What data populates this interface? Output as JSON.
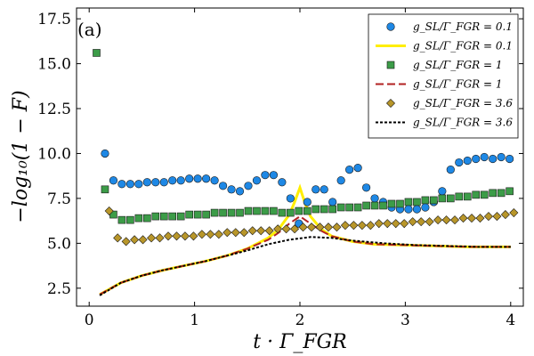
{
  "chart_data": {
    "type": "scatter",
    "panel_label": "(a)",
    "xlabel": "t · Γ_FGR",
    "ylabel": "−log₁₀(1 − F)",
    "xlim": [
      -0.12,
      4.12
    ],
    "ylim": [
      1.5,
      18.1
    ],
    "x_ticks": [
      0,
      1,
      2,
      3,
      4
    ],
    "y_ticks": [
      2.5,
      5.0,
      7.5,
      10.0,
      12.5,
      15.0,
      17.5
    ],
    "x_tick_labels": [
      "0",
      "1",
      "2",
      "3",
      "4"
    ],
    "y_tick_labels": [
      "2.5",
      "5.0",
      "7.5",
      "10.0",
      "12.5",
      "15.0",
      "17.5"
    ],
    "grid": false,
    "legend_position": "top-right",
    "series": [
      {
        "name": "g_SL/Γ_FGR = 0.1",
        "kind": "scatter",
        "marker": "circle",
        "color": "#1e88e5",
        "x": [
          0.15,
          0.23,
          0.31,
          0.39,
          0.47,
          0.55,
          0.63,
          0.71,
          0.79,
          0.87,
          0.95,
          1.03,
          1.11,
          1.19,
          1.27,
          1.35,
          1.43,
          1.51,
          1.59,
          1.67,
          1.75,
          1.83,
          1.91,
          1.99,
          2.07,
          2.15,
          2.23,
          2.31,
          2.39,
          2.47,
          2.55,
          2.63,
          2.71,
          2.79,
          2.87,
          2.95,
          3.03,
          3.11,
          3.19,
          3.27,
          3.35,
          3.43,
          3.51,
          3.59,
          3.67,
          3.75,
          3.83,
          3.91,
          3.99
        ],
        "y": [
          10.0,
          8.5,
          8.3,
          8.3,
          8.3,
          8.4,
          8.4,
          8.4,
          8.5,
          8.5,
          8.6,
          8.6,
          8.6,
          8.5,
          8.2,
          8.0,
          7.9,
          8.2,
          8.5,
          8.8,
          8.8,
          8.4,
          7.5,
          6.1,
          7.3,
          8.0,
          8.0,
          7.3,
          8.5,
          9.1,
          9.2,
          8.1,
          7.5,
          7.3,
          7.0,
          6.9,
          6.9,
          6.9,
          7.0,
          7.3,
          7.9,
          9.1,
          9.5,
          9.6,
          9.7,
          9.8,
          9.7,
          9.8,
          9.7
        ]
      },
      {
        "name": "g_SL/Γ_FGR = 0.1",
        "kind": "line",
        "color": "#ffee00",
        "x": [
          0.1,
          0.3,
          0.5,
          0.7,
          0.9,
          1.1,
          1.3,
          1.5,
          1.7,
          1.8,
          1.9,
          1.95,
          2.0,
          2.05,
          2.1,
          2.2,
          2.3,
          2.5,
          2.7,
          3.0,
          3.3,
          3.6,
          3.8,
          4.0
        ],
        "y": [
          2.15,
          2.8,
          3.2,
          3.5,
          3.75,
          4.0,
          4.3,
          4.7,
          5.3,
          5.8,
          6.6,
          7.3,
          8.1,
          7.2,
          6.5,
          5.8,
          5.4,
          5.1,
          4.95,
          4.9,
          4.85,
          4.8,
          4.8,
          4.8
        ]
      },
      {
        "name": "g_SL/Γ_FGR = 1",
        "kind": "scatter",
        "marker": "square",
        "color": "#3c9c48",
        "x": [
          0.07,
          0.15,
          0.23,
          0.31,
          0.39,
          0.47,
          0.55,
          0.63,
          0.71,
          0.79,
          0.87,
          0.95,
          1.03,
          1.11,
          1.19,
          1.27,
          1.35,
          1.43,
          1.51,
          1.59,
          1.67,
          1.75,
          1.83,
          1.91,
          1.99,
          2.07,
          2.15,
          2.23,
          2.31,
          2.39,
          2.47,
          2.55,
          2.63,
          2.71,
          2.79,
          2.87,
          2.95,
          3.03,
          3.11,
          3.19,
          3.27,
          3.35,
          3.43,
          3.51,
          3.59,
          3.67,
          3.75,
          3.83,
          3.91,
          3.99
        ],
        "y": [
          15.6,
          8.0,
          6.6,
          6.3,
          6.3,
          6.4,
          6.4,
          6.5,
          6.5,
          6.5,
          6.5,
          6.6,
          6.6,
          6.6,
          6.7,
          6.7,
          6.7,
          6.7,
          6.8,
          6.8,
          6.8,
          6.8,
          6.7,
          6.7,
          6.8,
          6.8,
          6.9,
          6.9,
          6.9,
          7.0,
          7.0,
          7.0,
          7.1,
          7.1,
          7.1,
          7.2,
          7.2,
          7.3,
          7.3,
          7.4,
          7.4,
          7.5,
          7.5,
          7.6,
          7.6,
          7.7,
          7.7,
          7.8,
          7.8,
          7.9
        ]
      },
      {
        "name": "g_SL/Γ_FGR = 1",
        "kind": "line",
        "color": "#b22222",
        "dash": "long-dash",
        "x": [
          0.1,
          0.3,
          0.5,
          0.7,
          0.9,
          1.1,
          1.3,
          1.5,
          1.7,
          1.8,
          1.9,
          2.0,
          2.1,
          2.2,
          2.3,
          2.5,
          2.7,
          3.0,
          3.3,
          3.6,
          3.8,
          4.0
        ],
        "y": [
          2.15,
          2.8,
          3.2,
          3.5,
          3.75,
          4.0,
          4.3,
          4.7,
          5.2,
          5.6,
          6.1,
          6.5,
          6.1,
          5.7,
          5.4,
          5.1,
          4.95,
          4.9,
          4.85,
          4.8,
          4.8,
          4.8
        ]
      },
      {
        "name": "g_SL/Γ_FGR = 3.6",
        "kind": "scatter",
        "marker": "diamond",
        "color": "#b8962a",
        "x": [
          0.19,
          0.27,
          0.35,
          0.43,
          0.51,
          0.59,
          0.67,
          0.75,
          0.83,
          0.91,
          0.99,
          1.07,
          1.15,
          1.23,
          1.31,
          1.39,
          1.47,
          1.55,
          1.63,
          1.71,
          1.79,
          1.87,
          1.95,
          2.03,
          2.11,
          2.19,
          2.27,
          2.35,
          2.43,
          2.51,
          2.59,
          2.67,
          2.75,
          2.83,
          2.91,
          2.99,
          3.07,
          3.15,
          3.23,
          3.31,
          3.39,
          3.47,
          3.55,
          3.63,
          3.71,
          3.79,
          3.87,
          3.95,
          4.03
        ],
        "y": [
          6.8,
          5.3,
          5.1,
          5.2,
          5.2,
          5.3,
          5.3,
          5.4,
          5.4,
          5.4,
          5.4,
          5.5,
          5.5,
          5.5,
          5.6,
          5.6,
          5.6,
          5.7,
          5.7,
          5.7,
          5.8,
          5.8,
          5.8,
          5.9,
          5.9,
          5.9,
          5.9,
          5.9,
          6.0,
          6.0,
          6.0,
          6.0,
          6.1,
          6.1,
          6.1,
          6.1,
          6.2,
          6.2,
          6.2,
          6.3,
          6.3,
          6.3,
          6.4,
          6.4,
          6.4,
          6.5,
          6.5,
          6.6,
          6.7
        ]
      },
      {
        "name": "g_SL/Γ_FGR = 3.6",
        "kind": "line",
        "color": "#000000",
        "dash": "dotted",
        "x": [
          0.1,
          0.3,
          0.5,
          0.7,
          0.9,
          1.1,
          1.3,
          1.5,
          1.7,
          1.9,
          2.1,
          2.3,
          2.5,
          2.8,
          3.1,
          3.4,
          3.7,
          4.0
        ],
        "y": [
          2.1,
          2.8,
          3.2,
          3.5,
          3.75,
          4.0,
          4.3,
          4.6,
          4.95,
          5.2,
          5.35,
          5.3,
          5.15,
          5.0,
          4.9,
          4.85,
          4.8,
          4.8
        ]
      }
    ]
  }
}
